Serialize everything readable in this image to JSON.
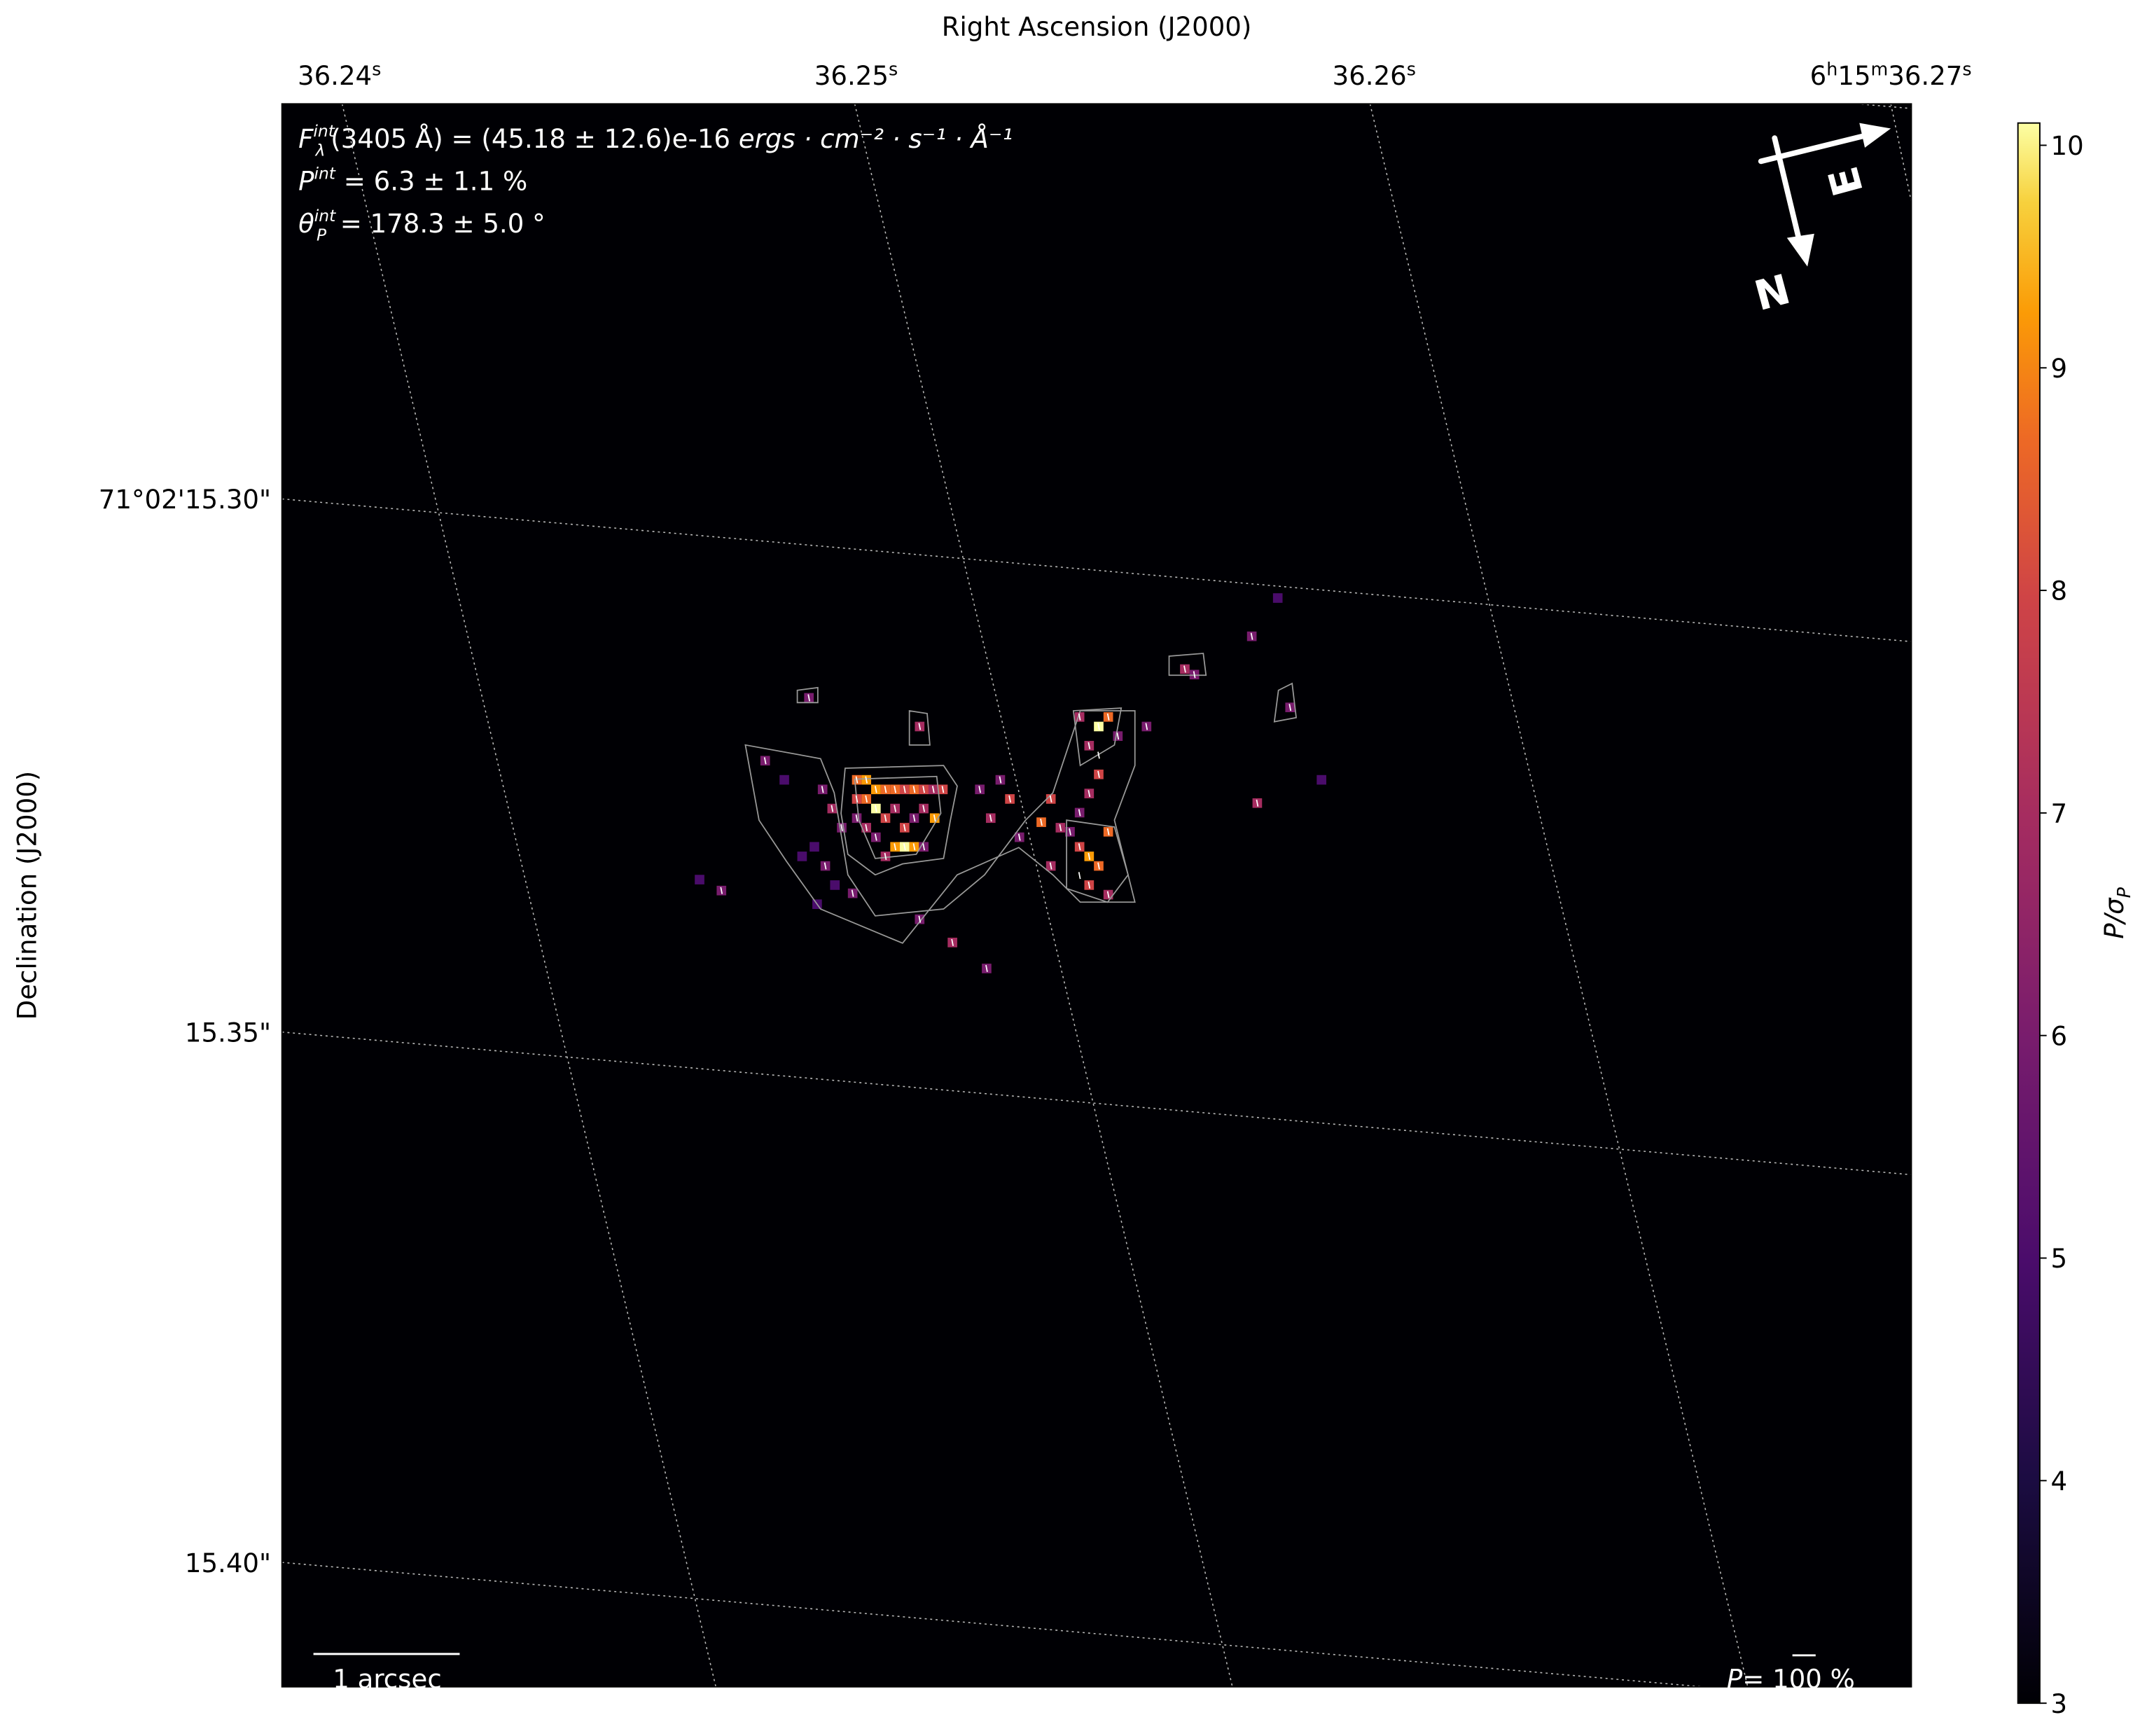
{
  "chart_data": {
    "type": "heatmap",
    "xlabel": "Right Ascension (J2000)",
    "ylabel": "Declination (J2000)",
    "x_tick_labels": [
      {
        "base": "36.24",
        "sup": "s"
      },
      {
        "base": "36.25",
        "sup": "s"
      },
      {
        "base": "36.26",
        "sup": "s"
      },
      {
        "base": "6",
        "h": "h",
        "m_val": "15",
        "m": "m",
        "s_val": "36.27",
        "sup": "s"
      }
    ],
    "y_tick_labels": [
      "71°02'15.30\"",
      "15.35\"",
      "15.40\""
    ],
    "colorbar": {
      "label": "P/σ",
      "label_sub": "P",
      "colormap": "inferno",
      "range": [
        3,
        10.1
      ],
      "ticks": [
        "3",
        "4",
        "5",
        "6",
        "7",
        "8",
        "9",
        "10"
      ]
    },
    "contours": "grey intensity contours",
    "grid": true,
    "annotations": {
      "flux_line": {
        "sym": "F",
        "sup": "int",
        "sub": "λ",
        "text": "(3405 Å) = (45.18 ± 12.6)e-16 ",
        "units": "ergs · cm⁻² · s⁻¹ · Å⁻¹"
      },
      "pol_line": {
        "sym": "P",
        "sup": "int",
        "text": " = 6.3 ± 1.1 %"
      },
      "angle_line": {
        "sym": "θ",
        "sup": "int",
        "sub": "P",
        "text": " = 178.3 ± 5.0 °"
      },
      "scale_bar": "1 arcsec",
      "vector_legend": {
        "sym": "P",
        "text": "= 100 %"
      },
      "compass": {
        "north": "N",
        "east": "E"
      }
    }
  }
}
